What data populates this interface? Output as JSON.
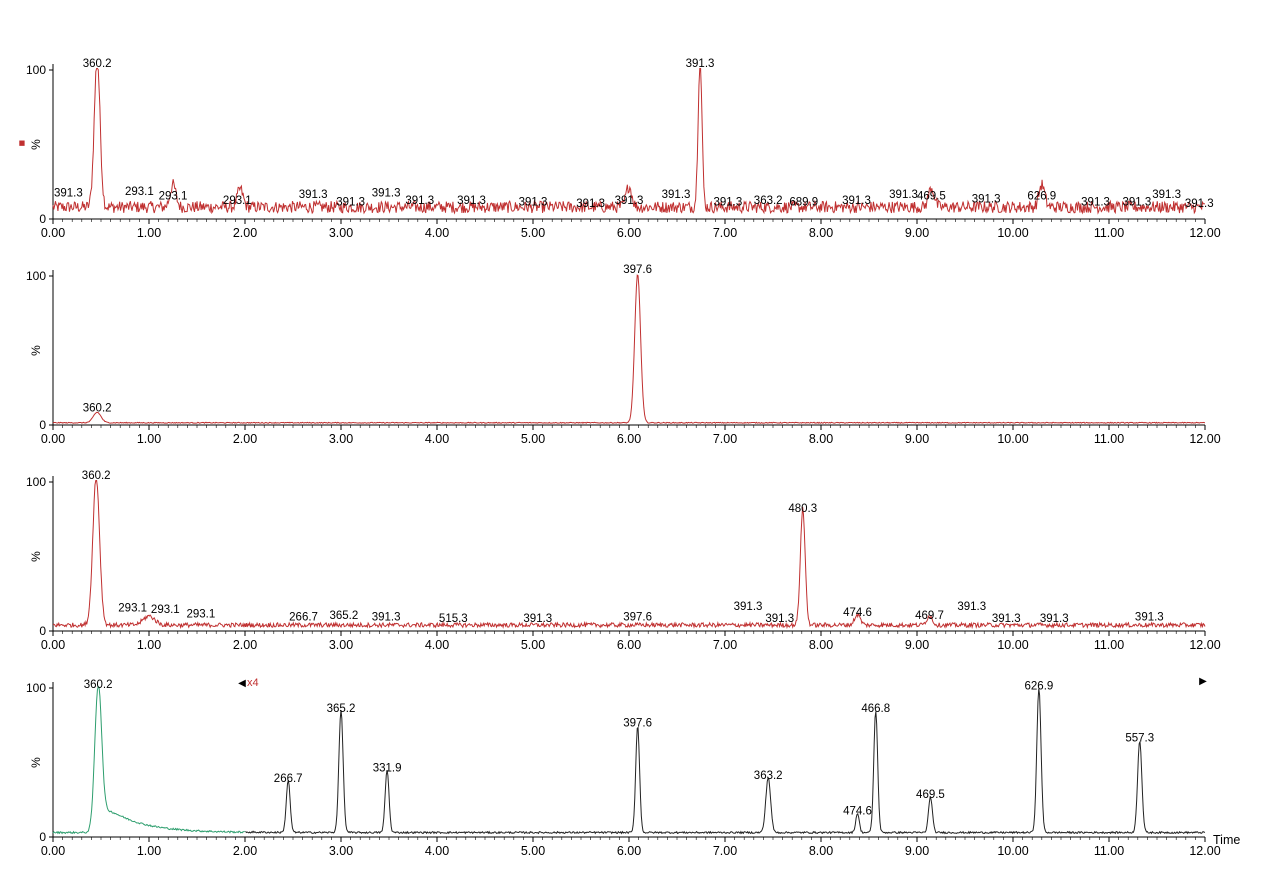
{
  "chart_data": [
    {
      "type": "line",
      "xlim": [
        0,
        12
      ],
      "ylim": [
        0,
        100
      ],
      "y_label": "%",
      "y_ticks": [
        0,
        100
      ],
      "x_ticks": [
        "0.00",
        "1.00",
        "2.00",
        "3.00",
        "4.00",
        "5.00",
        "6.00",
        "7.00",
        "8.00",
        "9.00",
        "10.00",
        "11.00",
        "12.00"
      ],
      "baseline": 8,
      "noise": 4,
      "peaks": [
        {
          "x": 0.46,
          "y": 100,
          "w": 0.03
        },
        {
          "x": 6.74,
          "y": 100,
          "w": 0.02
        },
        {
          "x": 1.25,
          "y": 15,
          "w": 0.03
        },
        {
          "x": 1.95,
          "y": 12,
          "w": 0.03
        },
        {
          "x": 6.0,
          "y": 14,
          "w": 0.03
        },
        {
          "x": 9.15,
          "y": 13,
          "w": 0.03
        },
        {
          "x": 10.3,
          "y": 15,
          "w": 0.03
        }
      ],
      "labels": [
        {
          "x": 0.16,
          "y": 13,
          "text": "391.3"
        },
        {
          "x": 0.46,
          "y": 100,
          "text": "360.2"
        },
        {
          "x": 0.9,
          "y": 14,
          "text": "293.1"
        },
        {
          "x": 1.25,
          "y": 11,
          "text": "293.1"
        },
        {
          "x": 1.92,
          "y": 8,
          "text": "293.1"
        },
        {
          "x": 2.71,
          "y": 12,
          "text": "391.3"
        },
        {
          "x": 3.1,
          "y": 7,
          "text": "391.3"
        },
        {
          "x": 3.47,
          "y": 13,
          "text": "391.3"
        },
        {
          "x": 3.82,
          "y": 8,
          "text": "391.3"
        },
        {
          "x": 4.36,
          "y": 8,
          "text": "391.3"
        },
        {
          "x": 5.0,
          "y": 7,
          "text": "391.3"
        },
        {
          "x": 5.6,
          "y": 6,
          "text": "391.3"
        },
        {
          "x": 6.0,
          "y": 8,
          "text": "391.3"
        },
        {
          "x": 6.49,
          "y": 12,
          "text": "391.3"
        },
        {
          "x": 6.74,
          "y": 100,
          "text": "391.3"
        },
        {
          "x": 7.03,
          "y": 7,
          "text": "391.3"
        },
        {
          "x": 7.45,
          "y": 8,
          "text": "363.2"
        },
        {
          "x": 7.82,
          "y": 7,
          "text": "689.9"
        },
        {
          "x": 8.37,
          "y": 8,
          "text": "391.3"
        },
        {
          "x": 8.86,
          "y": 12,
          "text": "391.3"
        },
        {
          "x": 9.15,
          "y": 11,
          "text": "469.5"
        },
        {
          "x": 9.72,
          "y": 9,
          "text": "391.3"
        },
        {
          "x": 10.3,
          "y": 11,
          "text": "626.9"
        },
        {
          "x": 10.86,
          "y": 7,
          "text": "391.3"
        },
        {
          "x": 11.29,
          "y": 7,
          "text": "391.3"
        },
        {
          "x": 11.6,
          "y": 12,
          "text": "391.3"
        },
        {
          "x": 11.94,
          "y": 6,
          "text": "391.3"
        }
      ],
      "series": [
        {
          "color": "#c03030"
        }
      ],
      "marker": {
        "symbol": "■",
        "color": "#c03030"
      }
    },
    {
      "type": "line",
      "xlim": [
        0,
        12
      ],
      "ylim": [
        0,
        100
      ],
      "y_label": "%",
      "y_ticks": [
        0,
        100
      ],
      "x_ticks": [
        "0.00",
        "1.00",
        "2.00",
        "3.00",
        "4.00",
        "5.00",
        "6.00",
        "7.00",
        "8.00",
        "9.00",
        "10.00",
        "11.00",
        "12.00"
      ],
      "baseline": 1.5,
      "noise": 0.3,
      "peaks": [
        {
          "x": 0.46,
          "y": 7,
          "w": 0.04
        },
        {
          "x": 6.09,
          "y": 100,
          "w": 0.03
        }
      ],
      "labels": [
        {
          "x": 0.46,
          "y": 7,
          "text": "360.2"
        },
        {
          "x": 6.09,
          "y": 100,
          "text": "397.6"
        }
      ],
      "series": [
        {
          "color": "#c03030"
        }
      ]
    },
    {
      "type": "line",
      "xlim": [
        0,
        12
      ],
      "ylim": [
        0,
        100
      ],
      "y_label": "%",
      "y_ticks": [
        0,
        100
      ],
      "x_ticks": [
        "0.00",
        "1.00",
        "2.00",
        "3.00",
        "4.00",
        "5.00",
        "6.00",
        "7.00",
        "8.00",
        "9.00",
        "10.00",
        "11.00",
        "12.00"
      ],
      "baseline": 4,
      "noise": 1.5,
      "peaks": [
        {
          "x": 0.45,
          "y": 100,
          "w": 0.035
        },
        {
          "x": 7.81,
          "y": 78,
          "w": 0.025
        },
        {
          "x": 8.38,
          "y": 7,
          "w": 0.03
        },
        {
          "x": 9.13,
          "y": 6,
          "w": 0.03
        },
        {
          "x": 1.0,
          "y": 6,
          "w": 0.06
        }
      ],
      "labels": [
        {
          "x": 0.45,
          "y": 100,
          "text": "360.2"
        },
        {
          "x": 0.83,
          "y": 11,
          "text": "293.1"
        },
        {
          "x": 1.17,
          "y": 10,
          "text": "293.1"
        },
        {
          "x": 1.54,
          "y": 7,
          "text": "293.1"
        },
        {
          "x": 2.61,
          "y": 5,
          "text": "266.7"
        },
        {
          "x": 3.03,
          "y": 6,
          "text": "365.2"
        },
        {
          "x": 3.47,
          "y": 5,
          "text": "391.3"
        },
        {
          "x": 4.17,
          "y": 4,
          "text": "515.3"
        },
        {
          "x": 5.05,
          "y": 4,
          "text": "391.3"
        },
        {
          "x": 6.09,
          "y": 5,
          "text": "397.6"
        },
        {
          "x": 7.24,
          "y": 12,
          "text": "391.3"
        },
        {
          "x": 7.57,
          "y": 4,
          "text": "391.3"
        },
        {
          "x": 7.81,
          "y": 78,
          "text": "480.3"
        },
        {
          "x": 8.38,
          "y": 8,
          "text": "474.6"
        },
        {
          "x": 9.13,
          "y": 6,
          "text": "469.7"
        },
        {
          "x": 9.57,
          "y": 12,
          "text": "391.3"
        },
        {
          "x": 9.93,
          "y": 4,
          "text": "391.3"
        },
        {
          "x": 10.43,
          "y": 4,
          "text": "391.3"
        },
        {
          "x": 11.42,
          "y": 5,
          "text": "391.3"
        }
      ],
      "series": [
        {
          "color": "#c03030"
        }
      ]
    },
    {
      "type": "line",
      "xlim": [
        0,
        12
      ],
      "ylim": [
        0,
        100
      ],
      "y_label": "%",
      "y_ticks": [
        0,
        100
      ],
      "x_ticks": [
        "0.00",
        "1.00",
        "2.00",
        "3.00",
        "4.00",
        "5.00",
        "6.00",
        "7.00",
        "8.00",
        "9.00",
        "10.00",
        "11.00",
        "12.00"
      ],
      "x_axis_label": "Time",
      "zoom_label": "x4",
      "zoom_from": 2.0,
      "baseline": 3,
      "noise": 0.6,
      "peaks": [
        {
          "x": 0.47,
          "y": 98,
          "w": 0.035,
          "tail": true
        },
        {
          "x": 2.45,
          "y": 35,
          "w": 0.02
        },
        {
          "x": 3.0,
          "y": 82,
          "w": 0.022
        },
        {
          "x": 3.48,
          "y": 42,
          "w": 0.02
        },
        {
          "x": 6.09,
          "y": 72,
          "w": 0.02
        },
        {
          "x": 7.45,
          "y": 37,
          "w": 0.025
        },
        {
          "x": 8.38,
          "y": 13,
          "w": 0.018
        },
        {
          "x": 8.57,
          "y": 82,
          "w": 0.02
        },
        {
          "x": 9.14,
          "y": 24,
          "w": 0.02
        },
        {
          "x": 10.27,
          "y": 97,
          "w": 0.022
        },
        {
          "x": 11.32,
          "y": 62,
          "w": 0.022
        }
      ],
      "labels": [
        {
          "x": 0.47,
          "y": 98,
          "text": "360.2"
        },
        {
          "x": 2.45,
          "y": 35,
          "text": "266.7"
        },
        {
          "x": 3.0,
          "y": 82,
          "text": "365.2"
        },
        {
          "x": 3.48,
          "y": 42,
          "text": "331.9"
        },
        {
          "x": 6.09,
          "y": 72,
          "text": "397.6"
        },
        {
          "x": 7.45,
          "y": 37,
          "text": "363.2"
        },
        {
          "x": 8.38,
          "y": 13,
          "text": "474.6"
        },
        {
          "x": 8.57,
          "y": 82,
          "text": "466.8"
        },
        {
          "x": 9.14,
          "y": 24,
          "text": "469.5"
        },
        {
          "x": 10.27,
          "y": 97,
          "text": "626.9"
        },
        {
          "x": 11.32,
          "y": 62,
          "text": "557.3"
        }
      ],
      "series": [
        {
          "color": "#2e9e6e",
          "x_range": [
            0,
            2.0
          ]
        },
        {
          "color": "#222222",
          "x_range": [
            2.0,
            12
          ]
        }
      ]
    }
  ]
}
